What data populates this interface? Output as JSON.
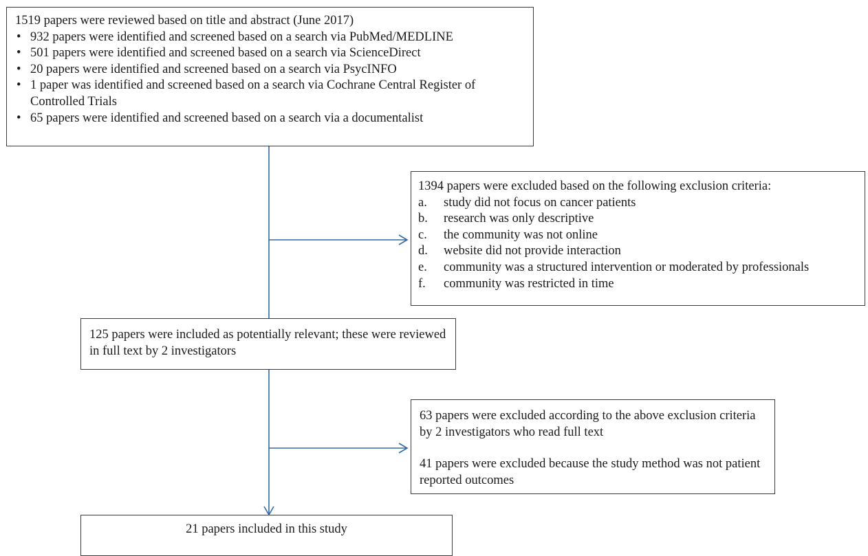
{
  "search_box": {
    "heading": "1519 papers were reviewed based on title and abstract (June 2017)",
    "items": [
      "932 papers were identified and screened based on a search via PubMed/MEDLINE",
      "501 papers were identified and screened based on a search via ScienceDirect",
      "20 papers were identified and screened based on a search via PsycINFO",
      "1 paper was identified and screened based on a search via Cochrane Central Register of Controlled Trials",
      "65 papers were identified and screened based on a search via a documentalist"
    ]
  },
  "exclusion_box_1": {
    "heading": "1394 papers were excluded based on the following exclusion criteria:",
    "criteria": [
      {
        "marker": "a.",
        "text": "study did not focus on cancer patients"
      },
      {
        "marker": "b.",
        "text": "research was only descriptive"
      },
      {
        "marker": "c.",
        "text": "the community was not online"
      },
      {
        "marker": "d.",
        "text": "website did not provide interaction"
      },
      {
        "marker": "e.",
        "text": "community was a structured intervention or moderated by professionals"
      },
      {
        "marker": "f.",
        "text": "community was restricted in time"
      }
    ]
  },
  "fulltext_box": {
    "text": "125 papers were included as potentially relevant; these were reviewed in full text by 2 investigators"
  },
  "exclusion_box_2": {
    "paragraph_1": "63 papers were excluded according to the above exclusion criteria by 2 investigators who read full text",
    "paragraph_2": "41 papers were excluded because the study method was not patient reported outcomes"
  },
  "final_box": {
    "text": "21 papers included in this study"
  }
}
